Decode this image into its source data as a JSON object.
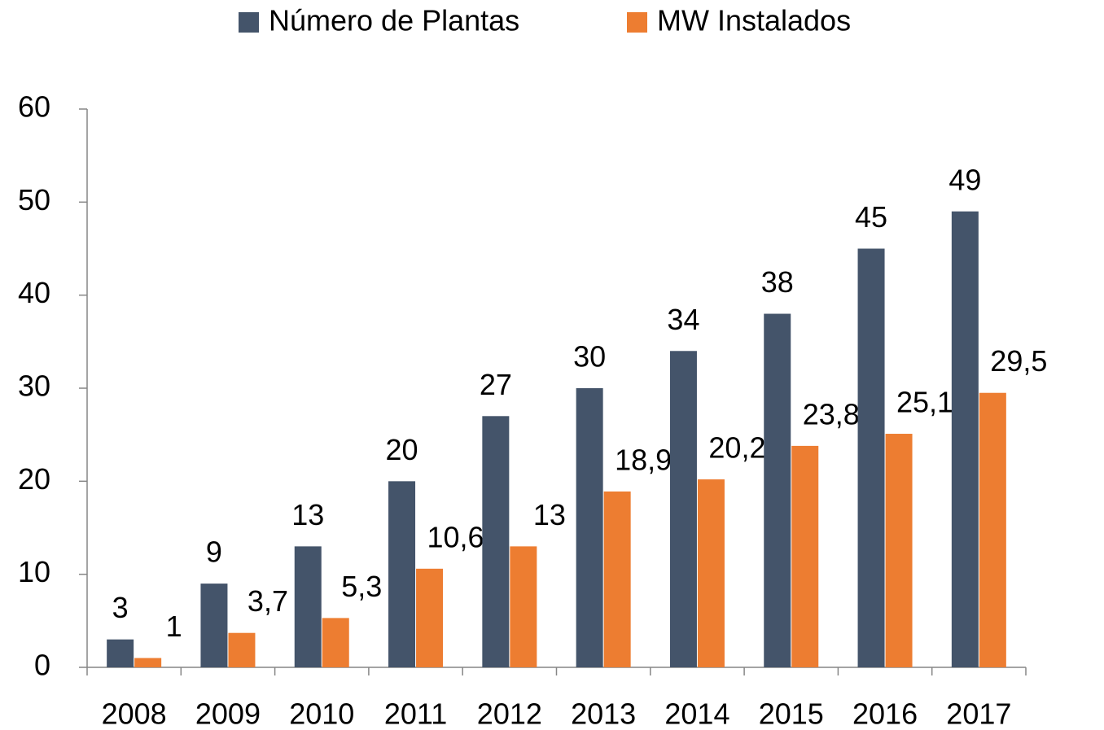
{
  "chart_data": {
    "type": "bar",
    "categories": [
      "2008",
      "2009",
      "2010",
      "2011",
      "2012",
      "2013",
      "2014",
      "2015",
      "2016",
      "2017"
    ],
    "series": [
      {
        "name": "Número de Plantas",
        "color": "#44546a",
        "values": [
          3,
          9,
          13,
          20,
          27,
          30,
          34,
          38,
          45,
          49
        ]
      },
      {
        "name": "MW Instalados",
        "color": "#ed7d31",
        "values": [
          1,
          3.7,
          5.3,
          10.6,
          13,
          18.9,
          20.2,
          23.8,
          25.1,
          29.5
        ],
        "value_labels": [
          "1",
          "3,7",
          "5,3",
          "10,6",
          "13",
          "18,9",
          "20,2",
          "23,8",
          "25,1",
          "29,5"
        ]
      }
    ],
    "ylim": [
      0,
      60
    ],
    "yticks": [
      0,
      10,
      20,
      30,
      40,
      50,
      60
    ],
    "grid": false,
    "legend": "top"
  }
}
